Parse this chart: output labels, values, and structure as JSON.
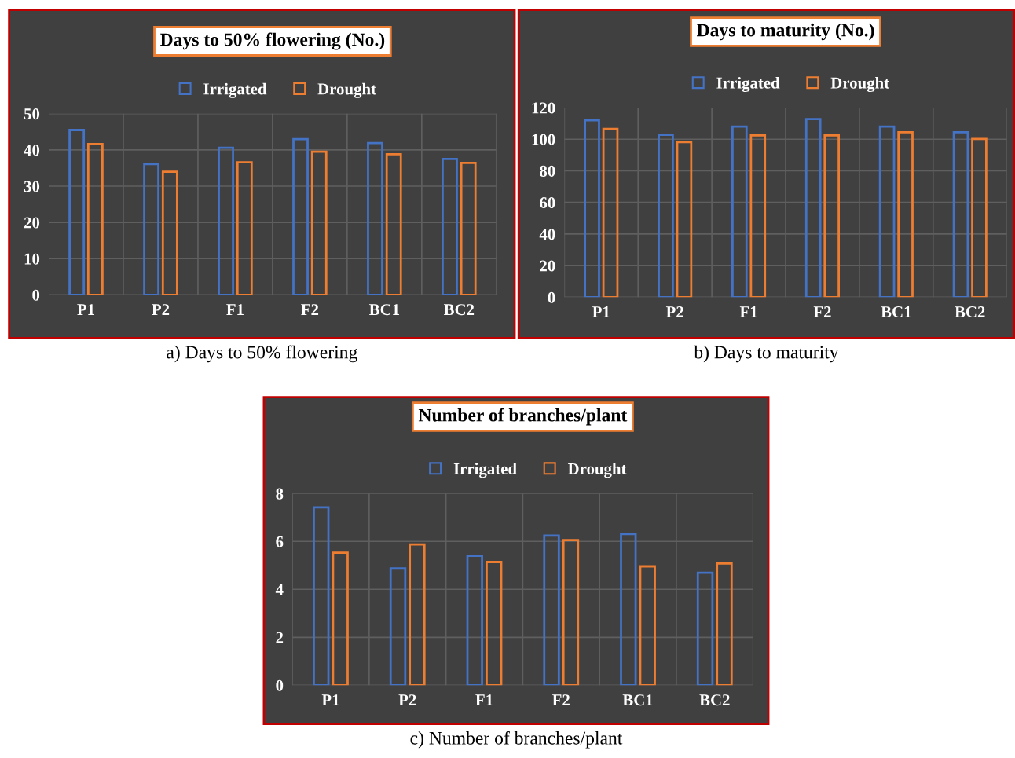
{
  "chart_data": [
    {
      "type": "bar",
      "title": "Days to 50% flowering (No.)",
      "categories": [
        "P1",
        "P2",
        "F1",
        "F2",
        "BC1",
        "BC2"
      ],
      "series": [
        {
          "name": "Irrigated",
          "color": "#4472c4",
          "values": [
            45.5,
            36.1,
            40.6,
            43.0,
            41.9,
            37.5
          ]
        },
        {
          "name": "Drought",
          "color": "#ed7d31",
          "values": [
            41.6,
            34.0,
            36.6,
            39.5,
            38.8,
            36.4
          ]
        }
      ],
      "ylim": [
        0,
        50
      ],
      "yticks": [
        0,
        10,
        20,
        30,
        40,
        50
      ],
      "grid": true,
      "legend": "top",
      "annotations": [
        "a) Days to 50% flowering"
      ]
    },
    {
      "type": "bar",
      "title": "Days to maturity (No.)",
      "categories": [
        "P1",
        "P2",
        "F1",
        "F2",
        "BC1",
        "BC2"
      ],
      "series": [
        {
          "name": "Irrigated",
          "color": "#4472c4",
          "values": [
            112,
            102.8,
            108,
            112.7,
            108,
            104.4
          ]
        },
        {
          "name": "Drought",
          "color": "#ed7d31",
          "values": [
            106.5,
            98.2,
            102.4,
            102.4,
            104.4,
            100.2
          ]
        }
      ],
      "ylim": [
        0,
        120
      ],
      "yticks": [
        0,
        20,
        40,
        60,
        80,
        100,
        120
      ],
      "grid": true,
      "legend": "top",
      "annotations": [
        "b) Days to maturity"
      ]
    },
    {
      "type": "bar",
      "title": "Number of branches/plant",
      "categories": [
        "P1",
        "P2",
        "F1",
        "F2",
        "BC1",
        "BC2"
      ],
      "series": [
        {
          "name": "Irrigated",
          "color": "#4472c4",
          "values": [
            7.42,
            4.87,
            5.4,
            6.24,
            6.31,
            4.69
          ]
        },
        {
          "name": "Drought",
          "color": "#ed7d31",
          "values": [
            5.53,
            5.87,
            5.14,
            6.05,
            4.96,
            5.08
          ]
        }
      ],
      "ylim": [
        0,
        8
      ],
      "yticks": [
        0,
        2,
        4,
        6,
        8
      ],
      "grid": true,
      "legend": "top",
      "annotations": [
        "c) Number of branches/plant"
      ]
    }
  ]
}
